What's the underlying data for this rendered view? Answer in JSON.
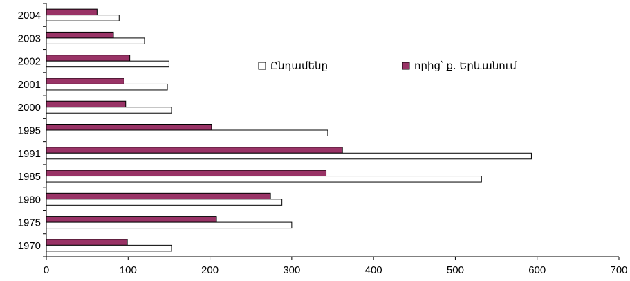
{
  "chart_data": {
    "type": "bar",
    "orientation": "horizontal",
    "categories": [
      "1970",
      "1975",
      "1980",
      "1985",
      "1991",
      "1995",
      "2000",
      "2001",
      "2002",
      "2003",
      "2004"
    ],
    "series": [
      {
        "name": "Ընդամենը",
        "color": "#ffffff",
        "values": [
          153,
          300,
          288,
          532,
          593,
          344,
          153,
          148,
          150,
          120,
          89
        ]
      },
      {
        "name": "որից՝ ք. Երևանում",
        "color": "#993366",
        "values": [
          99,
          208,
          274,
          342,
          362,
          202,
          97,
          95,
          102,
          82,
          62
        ]
      }
    ],
    "title": "",
    "xlabel": "",
    "ylabel": "",
    "xlim": [
      0,
      700
    ],
    "x_ticks": [
      "0",
      "100",
      "200",
      "300",
      "400",
      "500",
      "600",
      "700"
    ],
    "grid": false,
    "legend_position": "top-right"
  }
}
